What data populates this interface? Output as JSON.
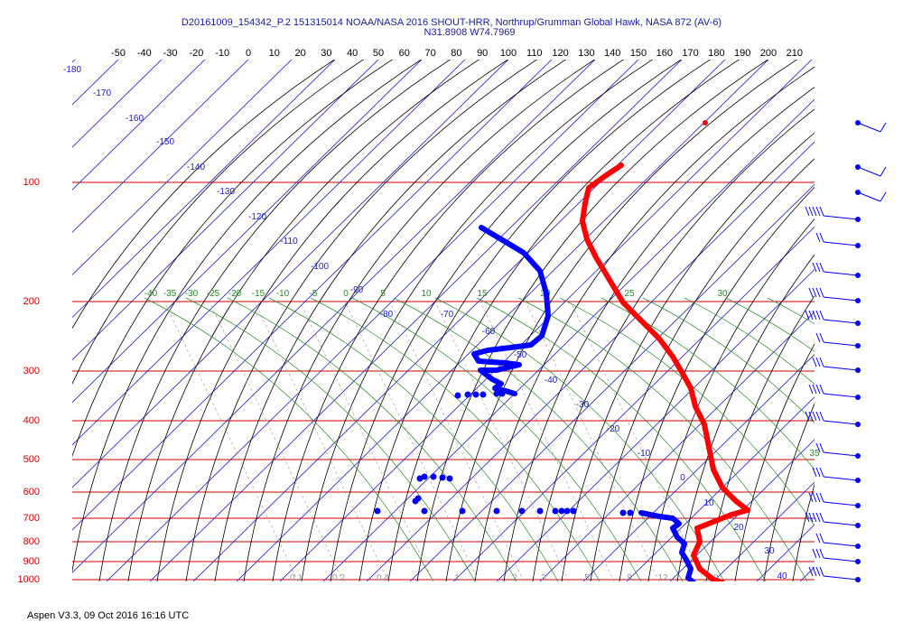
{
  "header": {
    "title": "D20161009_154342_P.2 151315014 NOAA/NASA 2016 SHOUT-HRR, Northrup/Grumman Global Hawk, NASA 872 (AV-6)",
    "coords": "N31.8908 W74.7969"
  },
  "footer": {
    "text": "Aspen V3.3, 09 Oct 2016  16:16 UTC"
  },
  "chart_data": {
    "type": "line",
    "title": "D20161009_154342_P.2 151315014 NOAA/NASA 2016 SHOUT-HRR, Northrup/Grumman Global Hawk, NASA 872 (AV-6)",
    "subtitle": "N31.8908 W74.7969",
    "diagram": "Skew-T log-P",
    "pressure_levels_hpa": [
      100,
      200,
      300,
      400,
      500,
      600,
      700,
      800,
      900,
      1000
    ],
    "top_temperature_ticks": [
      "-50",
      "-40",
      "-30",
      "-20",
      "-10",
      "0",
      "10",
      "20",
      "30",
      "40",
      "50",
      "60",
      "70",
      "80",
      "90",
      "100",
      "110",
      "120",
      "130",
      "140",
      "150",
      "160",
      "170",
      "180",
      "190",
      "200",
      "210"
    ],
    "isotherm_labels": [
      "-180",
      "-170",
      "-160",
      "-150",
      "-140",
      "-130",
      "-120",
      "-110",
      "-100",
      "-90",
      "-80",
      "-70",
      "-60",
      "-50",
      "-40",
      "-30",
      "-20",
      "-10",
      "0",
      "10",
      "20",
      "30",
      "40"
    ],
    "moist_adiabat_labels": [
      "-40",
      "-35",
      "-30",
      "-25",
      "-20",
      "-15",
      "-10",
      "-5",
      "0",
      "5",
      "10",
      "15",
      "20",
      "25",
      "30",
      "35"
    ],
    "mixing_ratio_labels": [
      "0.1",
      "0.2",
      "0.4",
      "1",
      "2",
      "3",
      "5",
      "8",
      "12",
      "20"
    ],
    "series": [
      {
        "name": "Temperature",
        "color": "#ff0000",
        "points_xy_image_space_note": "",
        "values": [
          [
            688,
            183
          ],
          [
            670,
            195
          ],
          [
            652,
            208
          ],
          [
            648,
            225
          ],
          [
            645,
            245
          ],
          [
            650,
            265
          ],
          [
            660,
            285
          ],
          [
            675,
            310
          ],
          [
            690,
            335
          ],
          [
            710,
            355
          ],
          [
            730,
            375
          ],
          [
            745,
            395
          ],
          [
            755,
            412
          ],
          [
            765,
            430
          ],
          [
            770,
            450
          ],
          [
            780,
            470
          ],
          [
            785,
            495
          ],
          [
            790,
            520
          ],
          [
            800,
            540
          ],
          [
            815,
            555
          ],
          [
            828,
            565
          ],
          [
            810,
            570
          ],
          [
            790,
            578
          ],
          [
            772,
            585
          ],
          [
            775,
            600
          ],
          [
            768,
            615
          ],
          [
            775,
            630
          ],
          [
            790,
            642
          ],
          [
            800,
            645
          ]
        ]
      },
      {
        "name": "Dew point",
        "color": "#0000ff",
        "values": [
          [
            533,
            252
          ],
          [
            555,
            265
          ],
          [
            580,
            280
          ],
          [
            598,
            300
          ],
          [
            605,
            325
          ],
          [
            607,
            350
          ],
          [
            600,
            372
          ],
          [
            588,
            382
          ],
          [
            565,
            385
          ],
          [
            540,
            388
          ],
          [
            525,
            392
          ],
          [
            530,
            400
          ],
          [
            560,
            402
          ],
          [
            575,
            404
          ],
          [
            550,
            410
          ],
          [
            532,
            410
          ],
          [
            545,
            420
          ],
          [
            555,
            425
          ],
          [
            548,
            430
          ],
          [
            560,
            433
          ],
          [
            570,
            436
          ]
        ]
      },
      {
        "name": "Dew point (lower)",
        "color": "#0000ff",
        "values": [
          [
            710,
            568
          ],
          [
            730,
            572
          ],
          [
            745,
            574
          ],
          [
            752,
            580
          ],
          [
            745,
            585
          ],
          [
            750,
            595
          ],
          [
            758,
            602
          ],
          [
            755,
            612
          ],
          [
            760,
            620
          ],
          [
            765,
            630
          ],
          [
            762,
            640
          ],
          [
            768,
            645
          ]
        ]
      }
    ],
    "scatter_points": {
      "dew_point_dots": [
        [
          507,
          438
        ],
        [
          518,
          437
        ],
        [
          527,
          437
        ],
        [
          535,
          437
        ],
        [
          550,
          436
        ],
        [
          556,
          436
        ],
        [
          465,
          530
        ],
        [
          470,
          528
        ],
        [
          480,
          528
        ],
        [
          490,
          529
        ],
        [
          498,
          530
        ],
        [
          460,
          555
        ],
        [
          463,
          552
        ],
        [
          418,
          566
        ],
        [
          470,
          566
        ],
        [
          512,
          566
        ],
        [
          550,
          566
        ],
        [
          578,
          566
        ],
        [
          598,
          566
        ],
        [
          615,
          566
        ],
        [
          622,
          566
        ],
        [
          628,
          566
        ],
        [
          635,
          566
        ],
        [
          690,
          568
        ],
        [
          698,
          568
        ]
      ],
      "isolated_temperature_dot": [
        781,
        136
      ]
    },
    "wind_barbs": [
      "barb",
      "barb",
      "barb",
      "barb",
      "barb",
      "barb",
      "barb",
      "barb",
      "barb",
      "barb",
      "barb",
      "barb",
      "barb",
      "barb",
      "barb",
      "barb",
      "barb",
      "barb"
    ]
  }
}
